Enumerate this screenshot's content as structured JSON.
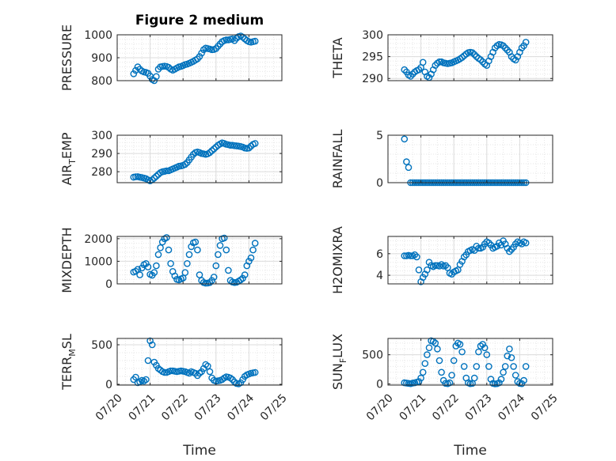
{
  "figure": {
    "title": "Figure 2 medium",
    "xlabel": "Time",
    "colors": {
      "marker": "#0072BD",
      "grid": "#dcdcdc",
      "axis": "#262626"
    }
  },
  "chart_data": [
    {
      "type": "scatter",
      "ylabel": "PRESSURE",
      "xlim": [
        "07/20",
        "07/25"
      ],
      "xticks": [
        "07/20",
        "07/21",
        "07/22",
        "07/23",
        "07/24",
        "07/25"
      ],
      "ylim": [
        800,
        1000
      ],
      "yticks": [
        "800",
        "900",
        "1000"
      ],
      "grid": true,
      "x_start": "07/20 12:00",
      "x_step_hours": 1.5,
      "values": [
        830,
        845,
        860,
        850,
        842,
        838,
        836,
        832,
        820,
        805,
        800,
        818,
        850,
        860,
        862,
        863,
        862,
        858,
        850,
        846,
        850,
        855,
        860,
        862,
        866,
        870,
        872,
        876,
        880,
        884,
        890,
        895,
        905,
        920,
        935,
        942,
        940,
        938,
        935,
        936,
        940,
        950,
        960,
        970,
        975,
        978,
        978,
        980,
        982,
        975,
        985,
        992,
        995,
        990,
        982,
        975,
        970,
        968,
        970,
        972
      ]
    },
    {
      "type": "scatter",
      "ylabel": "THETA",
      "xlim": [
        "07/20",
        "07/25"
      ],
      "xticks": [
        "07/20",
        "07/21",
        "07/22",
        "07/23",
        "07/24",
        "07/25"
      ],
      "ylim": [
        289.5,
        300
      ],
      "yticks": [
        "290",
        "295",
        "300"
      ],
      "grid": true,
      "x_start": "07/20 12:00",
      "x_step_hours": 1.5,
      "values": [
        292,
        291.5,
        290.8,
        290.5,
        291,
        291.5,
        291.8,
        292,
        292.5,
        293.7,
        291.5,
        290.5,
        290.2,
        291,
        292,
        293,
        293.5,
        293.8,
        293.8,
        293.6,
        293.5,
        293.4,
        293.5,
        293.6,
        293.8,
        294,
        294.2,
        294.5,
        294.8,
        295.2,
        295.6,
        295.9,
        296,
        295.9,
        295.5,
        295,
        294.6,
        294.3,
        293.8,
        293.3,
        293,
        294,
        295,
        296,
        297,
        297.5,
        297.8,
        297.7,
        297.5,
        297,
        296.5,
        296,
        295,
        294.5,
        294.2,
        295,
        296,
        297,
        297.5,
        298.3
      ]
    },
    {
      "type": "scatter",
      "ylabel": "AIR_TEMP",
      "xlim": [
        "07/20",
        "07/25"
      ],
      "xticks": [
        "07/20",
        "07/21",
        "07/22",
        "07/23",
        "07/24",
        "07/25"
      ],
      "ylim": [
        274,
        300
      ],
      "yticks": [
        "280",
        "290",
        "300"
      ],
      "grid": true,
      "x_start": "07/20 12:00",
      "x_step_hours": 1.5,
      "values": [
        277,
        277.2,
        277.3,
        277,
        276.8,
        276.5,
        276.2,
        275.5,
        275,
        275.5,
        276.5,
        277.5,
        278.5,
        279.5,
        280,
        280.2,
        280.5,
        280.5,
        281,
        281.5,
        282,
        282.5,
        283,
        283.2,
        283.5,
        284,
        285,
        286.5,
        288,
        289.5,
        290.5,
        290.8,
        290.5,
        290,
        289.8,
        289.5,
        289.8,
        290.5,
        291.5,
        292.5,
        293.5,
        294.5,
        295.2,
        295.8,
        295.5,
        295,
        294.8,
        294.5,
        294.5,
        294.3,
        294.2,
        294,
        293.8,
        293.5,
        293,
        292.8,
        293,
        294,
        295,
        295.5
      ]
    },
    {
      "type": "scatter",
      "ylabel": "RAINFALL",
      "xlim": [
        "07/20",
        "07/25"
      ],
      "xticks": [
        "07/20",
        "07/21",
        "07/22",
        "07/23",
        "07/24",
        "07/25"
      ],
      "ylim": [
        0,
        5
      ],
      "yticks": [
        "0",
        "5"
      ],
      "grid": true,
      "x_start": "07/20 12:00",
      "x_step_hours": 1.5,
      "values": [
        4.6,
        2.2,
        1.6,
        0,
        0,
        0,
        0,
        0,
        0,
        0,
        0,
        0,
        0,
        0,
        0,
        0,
        0,
        0,
        0,
        0,
        0,
        0,
        0,
        0,
        0,
        0,
        0,
        0,
        0,
        0,
        0,
        0,
        0,
        0,
        0,
        0,
        0,
        0,
        0,
        0,
        0,
        0,
        0,
        0,
        0,
        0,
        0,
        0,
        0,
        0,
        0,
        0,
        0,
        0,
        0,
        0,
        0,
        0,
        0,
        0
      ]
    },
    {
      "type": "scatter",
      "ylabel": "MIXDEPTH",
      "xlim": [
        "07/20",
        "07/25"
      ],
      "xticks": [
        "07/20",
        "07/21",
        "07/22",
        "07/23",
        "07/24",
        "07/25"
      ],
      "ylim": [
        0,
        2100
      ],
      "yticks": [
        "0",
        "1000",
        "2000"
      ],
      "grid": true,
      "x_start": "07/20 12:00",
      "x_step_hours": 1.5,
      "values": [
        520,
        560,
        640,
        400,
        700,
        850,
        900,
        750,
        420,
        380,
        500,
        800,
        1300,
        1600,
        1850,
        2000,
        2050,
        1500,
        900,
        550,
        350,
        200,
        180,
        220,
        260,
        500,
        900,
        1300,
        1650,
        1820,
        1850,
        1500,
        400,
        150,
        60,
        30,
        40,
        60,
        150,
        300,
        800,
        1300,
        1700,
        2000,
        2030,
        1500,
        600,
        150,
        80,
        60,
        70,
        120,
        180,
        250,
        400,
        800,
        1000,
        1150,
        1500,
        1800
      ]
    },
    {
      "type": "scatter",
      "ylabel": "H2OMIXRA",
      "xlim": [
        "07/20",
        "07/25"
      ],
      "xticks": [
        "07/20",
        "07/21",
        "07/22",
        "07/23",
        "07/24",
        "07/25"
      ],
      "ylim": [
        3.2,
        7.6
      ],
      "yticks": [
        "4",
        "6"
      ],
      "grid": true,
      "x_start": "07/20 12:00",
      "x_step_hours": 1.5,
      "values": [
        5.8,
        5.8,
        5.85,
        5.8,
        5.8,
        5.9,
        5.7,
        4.5,
        3.4,
        3.8,
        4.1,
        4.5,
        5.2,
        4.9,
        4.8,
        4.9,
        4.9,
        4.85,
        5,
        4.85,
        4.9,
        4.7,
        4.2,
        4.1,
        4.3,
        4.4,
        4.5,
        5,
        5.3,
        5.7,
        5.9,
        6.2,
        6.3,
        6.4,
        6.3,
        6.7,
        6.5,
        6.5,
        6.6,
        6.9,
        7.1,
        7,
        6.8,
        6.5,
        6.6,
        6.7,
        7,
        6.8,
        7.2,
        6.9,
        6.5,
        6.2,
        6.4,
        6.6,
        6.9,
        7.1,
        7,
        6.9,
        7.1,
        7
      ]
    },
    {
      "type": "scatter",
      "ylabel": "TERR_MSL",
      "xlim": [
        "07/20",
        "07/25"
      ],
      "xticks": [
        "07/20",
        "07/21",
        "07/22",
        "07/23",
        "07/24",
        "07/25"
      ],
      "ylim": [
        -10,
        580
      ],
      "yticks": [
        "0",
        "500"
      ],
      "grid": true,
      "x_start": "07/20 12:00",
      "x_step_hours": 1.5,
      "values": [
        60,
        90,
        20,
        30,
        50,
        40,
        60,
        300,
        550,
        500,
        280,
        240,
        200,
        180,
        160,
        150,
        150,
        160,
        170,
        170,
        165,
        160,
        165,
        170,
        165,
        160,
        150,
        140,
        160,
        150,
        140,
        110,
        140,
        160,
        200,
        250,
        230,
        160,
        80,
        50,
        40,
        45,
        50,
        60,
        80,
        95,
        90,
        80,
        60,
        30,
        10,
        5,
        20,
        60,
        100,
        120,
        130,
        140,
        145,
        150
      ]
    },
    {
      "type": "scatter",
      "ylabel": "SUN_FLUX",
      "xlim": [
        "07/20",
        "07/25"
      ],
      "xticks": [
        "07/20",
        "07/21",
        "07/22",
        "07/23",
        "07/24",
        "07/25"
      ],
      "ylim": [
        -20,
        780
      ],
      "yticks": [
        "0",
        "500"
      ],
      "grid": true,
      "x_start": "07/20 12:00",
      "x_step_hours": 1.5,
      "values": [
        20,
        15,
        10,
        5,
        15,
        20,
        30,
        40,
        100,
        200,
        350,
        500,
        620,
        740,
        730,
        700,
        600,
        400,
        200,
        60,
        10,
        5,
        20,
        150,
        400,
        650,
        700,
        680,
        550,
        300,
        100,
        20,
        5,
        10,
        100,
        300,
        550,
        650,
        680,
        620,
        500,
        300,
        80,
        10,
        0,
        5,
        20,
        80,
        200,
        300,
        480,
        600,
        450,
        300,
        150,
        40,
        10,
        5,
        60,
        300
      ]
    }
  ]
}
